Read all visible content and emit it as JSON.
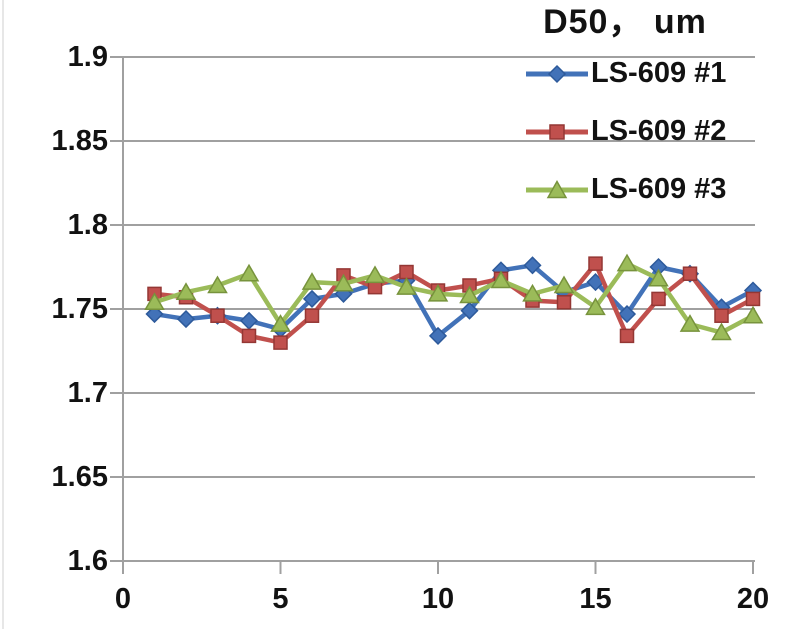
{
  "title": "D50， um",
  "chart_data": {
    "type": "line",
    "title": "D50， um",
    "xlabel": "",
    "ylabel": "",
    "xlim": [
      0,
      20
    ],
    "ylim": [
      1.6,
      1.9
    ],
    "x_ticks": [
      "0",
      "5",
      "10",
      "15",
      "20"
    ],
    "y_ticks": [
      "1.9",
      "1.85",
      "1.8",
      "1.75",
      "1.7",
      "1.65",
      "1.6"
    ],
    "grid": true,
    "legend_position": "top-right",
    "axis_color": "#a0a0a0",
    "text_color": "#121212",
    "x": [
      1,
      2,
      3,
      4,
      5,
      6,
      7,
      8,
      9,
      10,
      11,
      12,
      13,
      14,
      15,
      16,
      17,
      18,
      19,
      20
    ],
    "series": [
      {
        "name": "LS-609 #1",
        "marker": "diamond",
        "color": "#4272b8",
        "border": "#2d5a9b",
        "values": [
          1.747,
          1.744,
          1.746,
          1.743,
          1.738,
          1.756,
          1.759,
          1.765,
          1.767,
          1.734,
          1.749,
          1.773,
          1.776,
          1.76,
          1.766,
          1.747,
          1.775,
          1.771,
          1.751,
          1.761
        ]
      },
      {
        "name": "LS-609 #2",
        "marker": "square",
        "color": "#c0504d",
        "border": "#943734",
        "values": [
          1.759,
          1.757,
          1.746,
          1.734,
          1.73,
          1.746,
          1.77,
          1.763,
          1.772,
          1.761,
          1.764,
          1.768,
          1.755,
          1.754,
          1.777,
          1.734,
          1.756,
          1.771,
          1.746,
          1.756
        ]
      },
      {
        "name": "LS-609 #3",
        "marker": "triangle",
        "color": "#9bbb59",
        "border": "#77933c",
        "values": [
          1.754,
          1.76,
          1.764,
          1.771,
          1.741,
          1.766,
          1.765,
          1.77,
          1.763,
          1.759,
          1.758,
          1.767,
          1.759,
          1.764,
          1.751,
          1.777,
          1.768,
          1.741,
          1.736,
          1.746
        ]
      }
    ]
  }
}
